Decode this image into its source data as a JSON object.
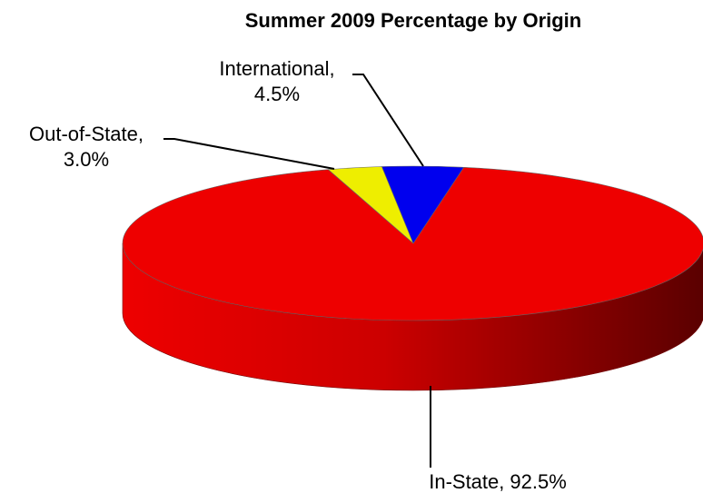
{
  "chart_data": {
    "type": "pie",
    "title": "Summer 2009 Percentage by Origin",
    "categories": [
      "In-State,",
      "Out-of-State,",
      "International,"
    ],
    "values": [
      92.5,
      3.0,
      4.5
    ],
    "value_labels": [
      "92.5%",
      "3.0%",
      "4.5%"
    ],
    "colors": [
      "#ee0000",
      "#eeee00",
      "#0000ee"
    ]
  }
}
